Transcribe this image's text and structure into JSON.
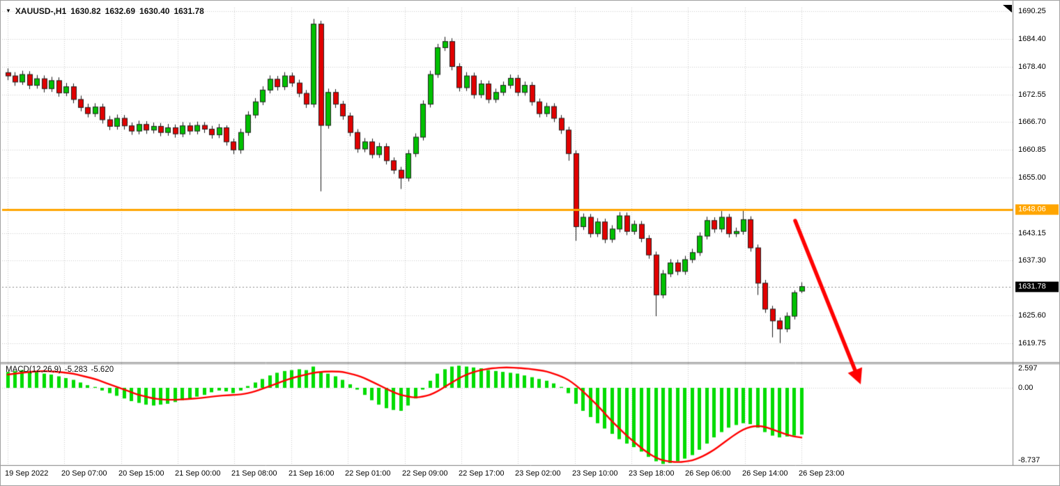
{
  "header": {
    "marker": "▼",
    "symbol": "XAUUSD-,H1",
    "open": "1630.82",
    "high": "1632.69",
    "low": "1630.40",
    "close": "1631.78"
  },
  "price_axis": {
    "labels": [
      "1690.25",
      "1684.40",
      "1678.40",
      "1672.55",
      "1666.70",
      "1660.85",
      "1655.00",
      "1643.15",
      "1637.30",
      "1625.60",
      "1619.75"
    ],
    "values": [
      1690.25,
      1684.4,
      1678.4,
      1672.55,
      1666.7,
      1660.85,
      1655.0,
      1643.15,
      1637.3,
      1625.6,
      1619.75
    ]
  },
  "badges": {
    "hline": {
      "text": "1648.06",
      "bg": "#FFA500"
    },
    "last": {
      "text": "1631.78",
      "bg": "#000000"
    }
  },
  "time_axis": {
    "labels": [
      "19 Sep 2022",
      "20 Sep 07:00",
      "20 Sep 15:00",
      "21 Sep 00:00",
      "21 Sep 08:00",
      "21 Sep 16:00",
      "22 Sep 01:00",
      "22 Sep 09:00",
      "22 Sep 17:00",
      "23 Sep 02:00",
      "23 Sep 10:00",
      "23 Sep 18:00",
      "26 Sep 06:00",
      "26 Sep 14:00",
      "26 Sep 23:00"
    ]
  },
  "macd_panel": {
    "label": "MACD(12,26,9)",
    "value_macd": "-5.283",
    "value_signal": "-5.620",
    "axis": [
      {
        "text": "2.597",
        "value": 2.597
      },
      {
        "text": "0.00",
        "value": 0
      },
      {
        "text": "-8.737",
        "value": -8.737
      }
    ]
  },
  "colors": {
    "bull": "#00C000",
    "bear": "#E10000",
    "wick": "#1a1a1a",
    "body_stroke": "#222222",
    "grid": "#cccccc",
    "hline": "#FFA500",
    "last_line": "#888888",
    "histogram": "#00DC00",
    "signal": "#FF0000",
    "arrow": "#FF0000",
    "frame": "#808080"
  },
  "chart_data": {
    "type": "candlestick",
    "symbol": "XAUUSD",
    "timeframe": "H1",
    "title": "XAUUSD-,H1 1630.82 1632.69 1630.40 1631.78",
    "ylim": [
      1617.5,
      1692.5
    ],
    "price_ticks": [
      1690.25,
      1684.4,
      1678.4,
      1672.55,
      1666.7,
      1660.85,
      1655.0,
      1643.15,
      1637.3,
      1625.6,
      1619.75
    ],
    "horizontal_line": 1648.06,
    "last_price": 1631.78,
    "grid": "dotted",
    "candles": [
      [
        1677.2,
        1678.1,
        1675.6,
        1676.5
      ],
      [
        1676.5,
        1677.3,
        1674.4,
        1675.2
      ],
      [
        1675.2,
        1677.6,
        1674.6,
        1676.8
      ],
      [
        1676.8,
        1677.5,
        1673.7,
        1674.5
      ],
      [
        1674.5,
        1676.7,
        1673.8,
        1675.9
      ],
      [
        1675.9,
        1676.6,
        1673.0,
        1673.8
      ],
      [
        1673.8,
        1676.3,
        1673.1,
        1675.5
      ],
      [
        1675.5,
        1676.2,
        1672.1,
        1672.9
      ],
      [
        1672.9,
        1675.0,
        1672.2,
        1674.2
      ],
      [
        1674.2,
        1674.9,
        1670.7,
        1671.5
      ],
      [
        1671.5,
        1672.3,
        1669.0,
        1669.8
      ],
      [
        1669.8,
        1670.6,
        1667.7,
        1668.5
      ],
      [
        1668.5,
        1670.7,
        1667.8,
        1669.9
      ],
      [
        1669.9,
        1670.6,
        1666.4,
        1667.2
      ],
      [
        1667.2,
        1668.0,
        1665.0,
        1665.8
      ],
      [
        1665.8,
        1668.3,
        1665.1,
        1667.5
      ],
      [
        1667.5,
        1668.2,
        1665.1,
        1665.9
      ],
      [
        1665.9,
        1666.6,
        1664.0,
        1664.8
      ],
      [
        1664.8,
        1667.0,
        1664.1,
        1666.2
      ],
      [
        1666.2,
        1666.9,
        1664.2,
        1665.0
      ],
      [
        1665.0,
        1666.6,
        1664.3,
        1665.8
      ],
      [
        1665.8,
        1666.5,
        1663.7,
        1664.5
      ],
      [
        1664.5,
        1666.3,
        1663.8,
        1665.5
      ],
      [
        1665.5,
        1666.2,
        1663.4,
        1664.2
      ],
      [
        1664.2,
        1666.7,
        1663.5,
        1665.9
      ],
      [
        1665.9,
        1666.6,
        1664.0,
        1664.8
      ],
      [
        1664.8,
        1666.8,
        1664.1,
        1666.0
      ],
      [
        1666.0,
        1666.7,
        1664.4,
        1665.2
      ],
      [
        1665.2,
        1665.9,
        1663.2,
        1664.0
      ],
      [
        1664.0,
        1666.3,
        1663.3,
        1665.5
      ],
      [
        1665.5,
        1666.0,
        1661.7,
        1662.5
      ],
      [
        1662.5,
        1663.2,
        1659.9,
        1660.8
      ],
      [
        1660.8,
        1665.3,
        1660.0,
        1664.5
      ],
      [
        1664.5,
        1669.0,
        1663.8,
        1668.2
      ],
      [
        1668.2,
        1671.8,
        1667.5,
        1671.0
      ],
      [
        1671.0,
        1674.3,
        1670.3,
        1673.5
      ],
      [
        1673.5,
        1676.6,
        1672.8,
        1675.8
      ],
      [
        1675.8,
        1676.5,
        1673.4,
        1674.2
      ],
      [
        1674.2,
        1677.3,
        1673.5,
        1676.5
      ],
      [
        1676.5,
        1677.2,
        1674.2,
        1675.0
      ],
      [
        1675.0,
        1675.7,
        1672.0,
        1672.8
      ],
      [
        1672.8,
        1673.5,
        1669.7,
        1670.5
      ],
      [
        1670.5,
        1688.6,
        1669.8,
        1687.5
      ],
      [
        1687.5,
        1688.2,
        1652.0,
        1666.0
      ],
      [
        1666.0,
        1673.8,
        1665.3,
        1673.0
      ],
      [
        1673.0,
        1673.7,
        1669.7,
        1670.5
      ],
      [
        1670.5,
        1671.2,
        1667.2,
        1668.0
      ],
      [
        1668.0,
        1668.7,
        1663.7,
        1664.5
      ],
      [
        1664.5,
        1665.2,
        1660.2,
        1661.0
      ],
      [
        1661.0,
        1663.3,
        1660.3,
        1662.5
      ],
      [
        1662.5,
        1663.2,
        1659.0,
        1659.8
      ],
      [
        1659.8,
        1662.3,
        1659.1,
        1661.5
      ],
      [
        1661.5,
        1662.2,
        1657.7,
        1658.5
      ],
      [
        1658.5,
        1659.2,
        1655.7,
        1656.5
      ],
      [
        1656.5,
        1657.2,
        1652.5,
        1654.8
      ],
      [
        1654.8,
        1660.8,
        1654.1,
        1660.0
      ],
      [
        1660.0,
        1664.3,
        1659.3,
        1663.5
      ],
      [
        1663.5,
        1671.3,
        1662.8,
        1670.5
      ],
      [
        1670.5,
        1677.6,
        1669.8,
        1676.8
      ],
      [
        1676.8,
        1683.3,
        1676.1,
        1682.5
      ],
      [
        1682.5,
        1684.8,
        1681.8,
        1683.8
      ],
      [
        1683.8,
        1684.5,
        1677.7,
        1678.5
      ],
      [
        1678.5,
        1679.2,
        1673.2,
        1674.0
      ],
      [
        1674.0,
        1677.3,
        1673.3,
        1676.5
      ],
      [
        1676.5,
        1677.2,
        1671.7,
        1672.5
      ],
      [
        1672.5,
        1675.6,
        1671.8,
        1674.8
      ],
      [
        1674.8,
        1675.5,
        1670.7,
        1671.5
      ],
      [
        1671.5,
        1673.8,
        1670.8,
        1673.0
      ],
      [
        1673.0,
        1675.3,
        1672.3,
        1674.5
      ],
      [
        1674.5,
        1676.8,
        1673.8,
        1676.0
      ],
      [
        1676.0,
        1676.7,
        1672.2,
        1673.0
      ],
      [
        1673.0,
        1675.3,
        1672.3,
        1674.5
      ],
      [
        1674.5,
        1675.2,
        1670.2,
        1671.0
      ],
      [
        1671.0,
        1671.7,
        1667.7,
        1668.5
      ],
      [
        1668.5,
        1670.8,
        1667.8,
        1670.0
      ],
      [
        1670.0,
        1670.7,
        1666.7,
        1667.5
      ],
      [
        1667.5,
        1668.2,
        1664.2,
        1665.0
      ],
      [
        1665.0,
        1665.7,
        1658.5,
        1660.0
      ],
      [
        1660.0,
        1660.7,
        1641.5,
        1644.5
      ],
      [
        1644.5,
        1647.3,
        1643.8,
        1646.5
      ],
      [
        1646.5,
        1647.2,
        1642.2,
        1643.0
      ],
      [
        1643.0,
        1646.3,
        1642.3,
        1645.5
      ],
      [
        1645.5,
        1646.2,
        1641.0,
        1641.8
      ],
      [
        1641.8,
        1644.8,
        1641.1,
        1644.0
      ],
      [
        1644.0,
        1647.6,
        1643.3,
        1646.8
      ],
      [
        1646.8,
        1647.5,
        1642.7,
        1643.5
      ],
      [
        1643.5,
        1645.8,
        1642.8,
        1645.0
      ],
      [
        1645.0,
        1645.7,
        1641.2,
        1642.0
      ],
      [
        1642.0,
        1642.7,
        1637.7,
        1638.5
      ],
      [
        1638.5,
        1639.2,
        1625.5,
        1630.0
      ],
      [
        1630.0,
        1635.3,
        1629.3,
        1634.5
      ],
      [
        1634.5,
        1637.6,
        1633.8,
        1636.8
      ],
      [
        1636.8,
        1637.5,
        1634.2,
        1635.0
      ],
      [
        1635.0,
        1638.3,
        1634.3,
        1637.5
      ],
      [
        1637.5,
        1639.8,
        1636.8,
        1639.0
      ],
      [
        1639.0,
        1643.3,
        1638.3,
        1642.5
      ],
      [
        1642.5,
        1646.6,
        1641.8,
        1645.8
      ],
      [
        1645.8,
        1646.5,
        1643.2,
        1644.0
      ],
      [
        1644.0,
        1647.8,
        1643.3,
        1646.5
      ],
      [
        1646.5,
        1647.2,
        1642.2,
        1643.0
      ],
      [
        1643.0,
        1644.3,
        1642.3,
        1643.5
      ],
      [
        1643.5,
        1648.0,
        1642.8,
        1646.0
      ],
      [
        1646.0,
        1646.7,
        1639.2,
        1640.0
      ],
      [
        1640.0,
        1640.7,
        1630.0,
        1632.5
      ],
      [
        1632.5,
        1633.2,
        1626.2,
        1627.0
      ],
      [
        1627.0,
        1627.7,
        1621.0,
        1624.5
      ],
      [
        1624.5,
        1625.2,
        1619.8,
        1622.8
      ],
      [
        1622.8,
        1626.3,
        1622.1,
        1625.5
      ],
      [
        1625.5,
        1631.0,
        1624.8,
        1630.5
      ],
      [
        1630.82,
        1632.69,
        1630.4,
        1631.78
      ]
    ],
    "macd": {
      "type": "histogram+line",
      "params": [
        12,
        26,
        9
      ],
      "ylim": [
        -8.737,
        2.597
      ],
      "last_macd": -5.283,
      "last_signal": -5.62,
      "histogram": [
        1.8,
        1.9,
        2.0,
        1.9,
        1.8,
        1.6,
        1.5,
        1.3,
        1.1,
        0.9,
        0.6,
        0.3,
        0.1,
        -0.3,
        -0.6,
        -0.9,
        -1.2,
        -1.5,
        -1.7,
        -1.9,
        -2.0,
        -1.9,
        -1.8,
        -1.6,
        -1.4,
        -1.2,
        -1.0,
        -0.8,
        -0.5,
        -0.3,
        -0.4,
        -0.6,
        -0.3,
        0.2,
        0.6,
        1.0,
        1.4,
        1.7,
        1.9,
        2.0,
        2.1,
        2.0,
        2.4,
        1.8,
        1.6,
        1.3,
        0.9,
        0.4,
        -0.2,
        -0.8,
        -1.4,
        -1.9,
        -2.3,
        -2.5,
        -2.6,
        -2.0,
        -1.2,
        -0.2,
        0.8,
        1.6,
        2.1,
        2.4,
        2.5,
        2.4,
        2.3,
        2.2,
        2.0,
        1.9,
        1.8,
        1.7,
        1.6,
        1.4,
        1.2,
        1.0,
        0.8,
        0.5,
        0.1,
        -0.6,
        -1.8,
        -2.6,
        -3.3,
        -4.0,
        -4.6,
        -5.2,
        -5.8,
        -6.3,
        -6.7,
        -7.2,
        -7.8,
        -8.3,
        -8.6,
        -8.5,
        -8.3,
        -8.0,
        -7.6,
        -7.0,
        -6.3,
        -5.6,
        -5.0,
        -4.5,
        -4.2,
        -4.0,
        -4.1,
        -4.5,
        -5.0,
        -5.4,
        -5.6,
        -5.5,
        -5.4,
        -5.283
      ],
      "signal": [
        1.5,
        1.6,
        1.7,
        1.8,
        1.85,
        1.9,
        1.85,
        1.8,
        1.7,
        1.6,
        1.4,
        1.2,
        1.0,
        0.7,
        0.4,
        0.1,
        -0.2,
        -0.5,
        -0.8,
        -1.0,
        -1.2,
        -1.3,
        -1.35,
        -1.35,
        -1.3,
        -1.25,
        -1.2,
        -1.1,
        -1.0,
        -0.9,
        -0.85,
        -0.8,
        -0.75,
        -0.6,
        -0.4,
        -0.1,
        0.2,
        0.5,
        0.8,
        1.1,
        1.3,
        1.5,
        1.7,
        1.8,
        1.85,
        1.85,
        1.8,
        1.6,
        1.4,
        1.1,
        0.7,
        0.3,
        -0.1,
        -0.5,
        -0.8,
        -1.0,
        -1.1,
        -1.0,
        -0.8,
        -0.4,
        0.1,
        0.6,
        1.1,
        1.5,
        1.8,
        2.0,
        2.15,
        2.25,
        2.3,
        2.3,
        2.25,
        2.2,
        2.1,
        2.0,
        1.85,
        1.6,
        1.3,
        0.9,
        0.3,
        -0.4,
        -1.2,
        -2.0,
        -2.9,
        -3.8,
        -4.6,
        -5.4,
        -6.1,
        -6.8,
        -7.4,
        -7.9,
        -8.2,
        -8.35,
        -8.4,
        -8.35,
        -8.2,
        -7.9,
        -7.5,
        -7.0,
        -6.4,
        -5.8,
        -5.2,
        -4.7,
        -4.4,
        -4.3,
        -4.4,
        -4.7,
        -5.0,
        -5.3,
        -5.5,
        -5.62
      ]
    },
    "annotation_arrow": {
      "color": "#FF0000",
      "direction": "down-right",
      "x1": 1140,
      "y1": 316,
      "x2": 1234,
      "y2": 551
    }
  }
}
